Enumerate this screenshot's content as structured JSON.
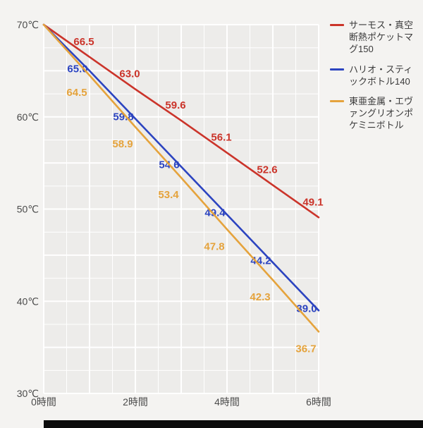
{
  "page": {
    "background": "#f4f3f1",
    "grid_color": "#ffffff",
    "plot_bg": "#edecea"
  },
  "chart_data": {
    "type": "line",
    "title": "",
    "xlabel": "時間",
    "ylabel": "℃",
    "xlim": [
      0,
      6
    ],
    "ylim": [
      30,
      70
    ],
    "grid": true,
    "legend_position": "right",
    "x": [
      0,
      1,
      2,
      3,
      4,
      5,
      6
    ],
    "x_ticks": [
      0,
      2,
      4,
      6
    ],
    "x_tick_labels": [
      "0時間",
      "2時間",
      "4時間",
      "6時間"
    ],
    "y_ticks": [
      70,
      60,
      50,
      40,
      30
    ],
    "y_tick_labels": [
      "70℃",
      "60℃",
      "50℃",
      "40℃",
      "30℃"
    ],
    "series": [
      {
        "name": "サーモス・真空断熱ポケットマグ150",
        "color": "#cb342a",
        "values": [
          70,
          66.5,
          63.0,
          59.6,
          56.1,
          52.6,
          49.1
        ]
      },
      {
        "name": "ハリオ・スティックボトル140",
        "color": "#2c44c0",
        "values": [
          70,
          65.0,
          59.8,
          54.6,
          49.4,
          44.2,
          39.0
        ]
      },
      {
        "name": "東亜金属・エヴァングリオンポケミニボトル",
        "color": "#e5a33c",
        "values": [
          70,
          64.5,
          58.9,
          53.4,
          47.8,
          42.3,
          36.7
        ]
      }
    ],
    "point_labels_skip_first": true
  }
}
